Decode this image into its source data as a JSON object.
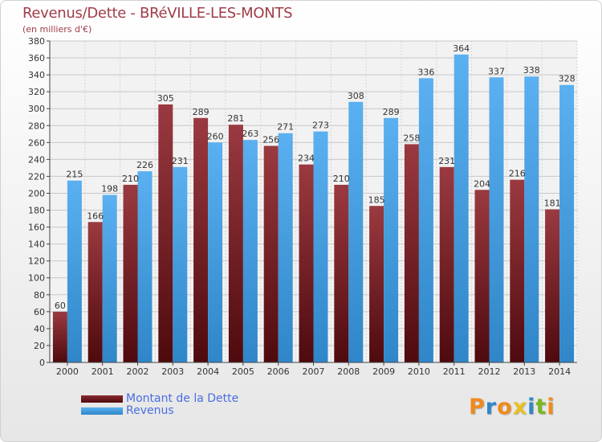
{
  "title": "Revenus/Dette - BRéVILLE-LES-MONTS",
  "subtitle": "(en milliers d'€)",
  "logo": "Proxiti",
  "chart_data": {
    "type": "bar",
    "categories": [
      "2000",
      "2001",
      "2002",
      "2003",
      "2004",
      "2005",
      "2006",
      "2007",
      "2008",
      "2009",
      "2010",
      "2011",
      "2012",
      "2013",
      "2014"
    ],
    "series": [
      {
        "name": "Montant de la Dette",
        "color": "#7a1c22",
        "values": [
          60,
          166,
          210,
          305,
          289,
          281,
          256,
          234,
          210,
          185,
          258,
          231,
          204,
          216,
          181
        ]
      },
      {
        "name": "Revenus",
        "color": "#4aa3e8",
        "values": [
          215,
          198,
          226,
          231,
          260,
          263,
          271,
          273,
          308,
          289,
          336,
          364,
          337,
          338,
          328
        ]
      }
    ],
    "ylim": [
      0,
      380
    ],
    "yticks": [
      0,
      20,
      40,
      60,
      80,
      100,
      120,
      140,
      160,
      180,
      200,
      220,
      240,
      260,
      280,
      300,
      320,
      340,
      360,
      380
    ],
    "grid": true,
    "legend_position": "bottom-left"
  },
  "legend": [
    {
      "label": "Montant de la Dette",
      "color": "#7a1c22"
    },
    {
      "label": "Revenus",
      "color": "#4aa3e8"
    }
  ]
}
